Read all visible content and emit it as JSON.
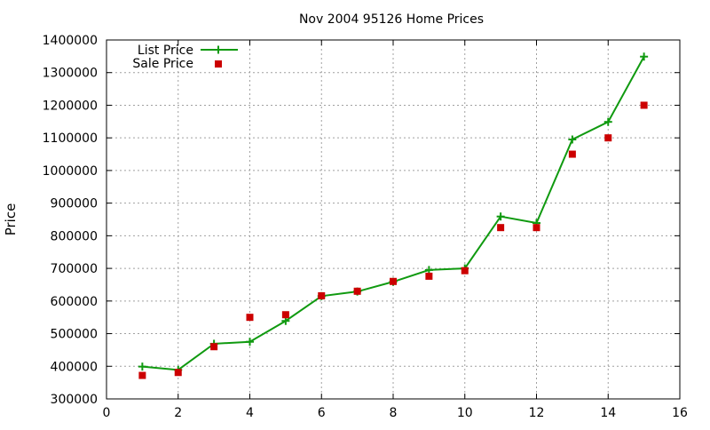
{
  "chart_data": {
    "type": "line",
    "title": "Nov 2004 95126 Home Prices",
    "xlabel": "",
    "ylabel": "Price",
    "xlim": [
      0,
      16
    ],
    "ylim": [
      300000,
      1400000
    ],
    "x_ticks": [
      0,
      2,
      4,
      6,
      8,
      10,
      12,
      14,
      16
    ],
    "y_ticks": [
      300000,
      400000,
      500000,
      600000,
      700000,
      800000,
      900000,
      1000000,
      1100000,
      1200000,
      1300000,
      1400000
    ],
    "grid": true,
    "legend_position": "top-left",
    "series": [
      {
        "name": "List Price",
        "style": "line-with-plus-markers",
        "color": "#109a10",
        "x": [
          1,
          2,
          3,
          4,
          5,
          6,
          7,
          8,
          9,
          10,
          11,
          12,
          13,
          14,
          15
        ],
        "y": [
          399000,
          389000,
          469000,
          475000,
          539000,
          615000,
          629000,
          659000,
          695000,
          700000,
          859000,
          839000,
          1095000,
          1149000,
          1349000
        ]
      },
      {
        "name": "Sale Price",
        "style": "square-markers",
        "color": "#cc0000",
        "x": [
          1,
          2,
          3,
          4,
          5,
          6,
          7,
          8,
          9,
          10,
          11,
          12,
          13,
          14,
          15
        ],
        "y": [
          372000,
          381000,
          460000,
          550000,
          558000,
          616000,
          630000,
          660000,
          676000,
          693000,
          825000,
          825000,
          1050000,
          1100000,
          1200000
        ]
      }
    ]
  }
}
